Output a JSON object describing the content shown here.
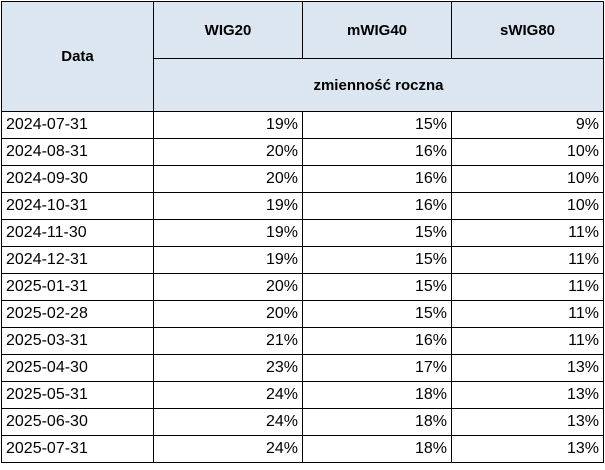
{
  "header": {
    "date": "Data",
    "columns": [
      "WIG20",
      "mWIG40",
      "sWIG80"
    ],
    "subheader": "zmienność roczna"
  },
  "table": {
    "rows": [
      [
        "2024-07-31",
        "19%",
        "15%",
        "9%"
      ],
      [
        "2024-08-31",
        "20%",
        "16%",
        "10%"
      ],
      [
        "2024-09-30",
        "20%",
        "16%",
        "10%"
      ],
      [
        "2024-10-31",
        "19%",
        "16%",
        "10%"
      ],
      [
        "2024-11-30",
        "19%",
        "15%",
        "11%"
      ],
      [
        "2024-12-31",
        "19%",
        "15%",
        "11%"
      ],
      [
        "2025-01-31",
        "20%",
        "15%",
        "11%"
      ],
      [
        "2025-02-28",
        "20%",
        "15%",
        "11%"
      ],
      [
        "2025-03-31",
        "21%",
        "16%",
        "11%"
      ],
      [
        "2025-04-30",
        "23%",
        "17%",
        "13%"
      ],
      [
        "2025-05-31",
        "24%",
        "18%",
        "13%"
      ],
      [
        "2025-06-30",
        "24%",
        "18%",
        "13%"
      ],
      [
        "2025-07-31",
        "24%",
        "18%",
        "13%"
      ]
    ]
  }
}
